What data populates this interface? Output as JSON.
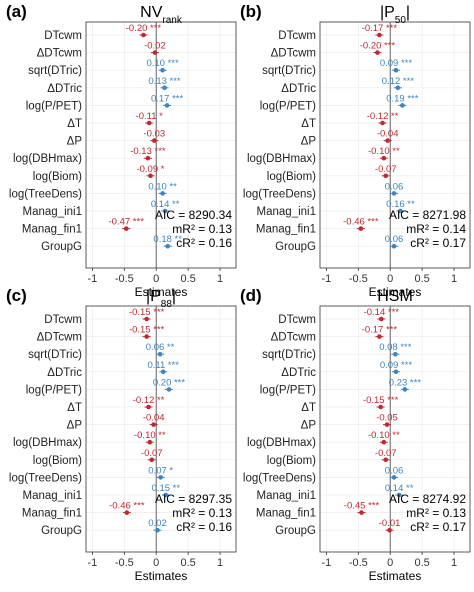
{
  "chart_data": {
    "type": "forest",
    "terms": [
      "DTcwm",
      "ΔDTcwm",
      "sqrt(DTric)",
      "ΔDTric",
      "log(P/PET)",
      "ΔT",
      "ΔP",
      "log(DBHmax)",
      "log(Biom)",
      "log(TreeDens)",
      "Manag_ini1",
      "Manag_fin1",
      "GroupG"
    ],
    "xlabel": "Estimates",
    "xticks": [
      -1,
      -0.5,
      0,
      0.5,
      1
    ],
    "xlim": [
      -1.1,
      1.25
    ],
    "colors": {
      "positive": "#3a85c2",
      "negative": "#c0292f",
      "neutral": "#3a85c2"
    },
    "panels": [
      {
        "letter": "(a)",
        "title": "NV",
        "title_sub": "rank",
        "estimates": [
          -0.2,
          -0.02,
          0.1,
          0.13,
          0.17,
          -0.11,
          -0.03,
          -0.13,
          -0.09,
          0.1,
          0.14,
          -0.47,
          0.18
        ],
        "labels": [
          "-0.20 ***",
          "-0.02",
          "0.10 ***",
          "0.13 ***",
          "0.17 ***",
          "-0.11 *",
          "-0.03",
          "-0.13 ***",
          "-0.09 *",
          "0.10 **",
          "0.14 **",
          "-0.47 ***",
          "0.18 **"
        ],
        "stats": {
          "aic": "AIC = 8290.34",
          "mr2": "mR² = 0.13",
          "cr2": "cR² = 0.16"
        }
      },
      {
        "letter": "(b)",
        "title": "|P",
        "title_sub": "50",
        "title_end": "|",
        "estimates": [
          -0.17,
          -0.2,
          0.09,
          0.12,
          0.19,
          -0.12,
          -0.04,
          -0.1,
          -0.07,
          0.06,
          0.16,
          -0.46,
          0.06
        ],
        "labels": [
          "-0.17 ***",
          "-0.20 ***",
          "0.09 ***",
          "0.12 ***",
          "0.19 ***",
          "-0.12 **",
          "-0.04",
          "-0.10 **",
          "-0.07",
          "0.06",
          "0.16 **",
          "-0.46 ***",
          "0.06"
        ],
        "stats": {
          "aic": "AIC = 8271.98",
          "mr2": "mR² = 0.14",
          "cr2": "cR² = 0.17"
        }
      },
      {
        "letter": "(c)",
        "title": "|P",
        "title_sub": "88",
        "title_end": "|",
        "estimates": [
          -0.15,
          -0.15,
          0.06,
          0.11,
          0.2,
          -0.12,
          -0.04,
          -0.1,
          -0.07,
          0.07,
          0.15,
          -0.46,
          0.02
        ],
        "labels": [
          "-0.15 ***",
          "-0.15 ***",
          "0.06 **",
          "0.11 ***",
          "0.20 ***",
          "-0.12 **",
          "-0.04",
          "-0.10 **",
          "-0.07",
          "0.07 *",
          "0.15 **",
          "-0.46 ***",
          "0.02"
        ],
        "stats": {
          "aic": "AIC = 8297.35",
          "mr2": "mR² = 0.13",
          "cr2": "cR² = 0.16"
        }
      },
      {
        "letter": "(d)",
        "title": "HSM",
        "title_sub": "",
        "estimates": [
          -0.14,
          -0.17,
          0.08,
          0.09,
          0.23,
          -0.15,
          -0.05,
          -0.1,
          -0.07,
          0.06,
          0.14,
          -0.45,
          -0.01
        ],
        "labels": [
          "-0.14 ***",
          "-0.17 ***",
          "0.08 ***",
          "0.09 ***",
          "0.23 ***",
          "-0.15 ***",
          "-0.05",
          "-0.10 **",
          "-0.07",
          "0.06",
          "0.14 **",
          "-0.45 ***",
          "-0.01"
        ],
        "stats": {
          "aic": "AIC = 8274.92",
          "mr2": "mR² = 0.13",
          "cr2": "cR² = 0.17"
        }
      }
    ]
  }
}
